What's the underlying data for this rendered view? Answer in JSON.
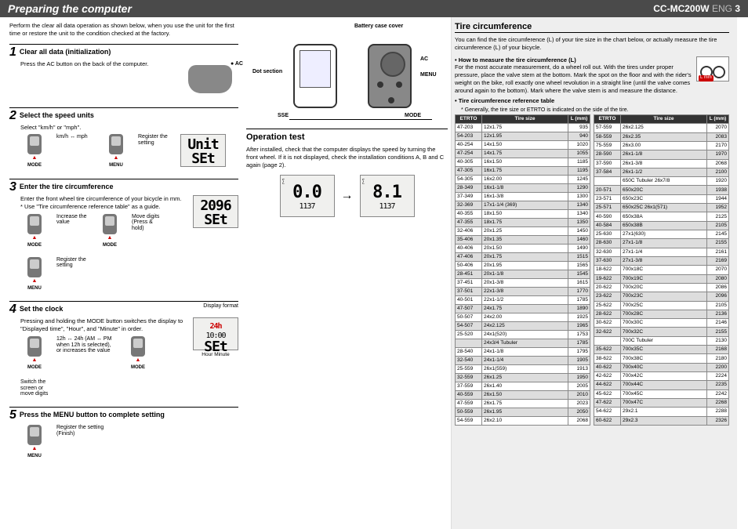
{
  "header": {
    "title": "Preparing the computer",
    "model": "CC-MC200W",
    "lang": "ENG",
    "page": "3"
  },
  "intro": "Perform the clear all data operation as shown below, when you use the unit for the first time or restore the unit to the condition checked at the factory.",
  "steps": [
    {
      "num": "1",
      "title": "Clear all data (initialization)",
      "body": "Press the AC button on the back of the computer.",
      "device_label": "AC"
    },
    {
      "num": "2",
      "title": "Select the speed units",
      "body": "Select \"km/h\" or \"mph\".",
      "btns": [
        {
          "cap": "km/h ↔ mph",
          "lbl": "MODE"
        },
        {
          "cap": "Register the setting",
          "lbl": "MENU"
        }
      ],
      "lcd": {
        "a": "Unit",
        "b": "SEt"
      }
    },
    {
      "num": "3",
      "title": "Enter the tire circumference",
      "body": "Enter the front wheel tire circumference of your bicycle in mm.\n* Use \"Tire circumference reference table\" as a guide.",
      "btns": [
        {
          "cap": "Increase the value",
          "lbl": "MODE"
        },
        {
          "cap": "Move digits (Press & hold)",
          "lbl": "MODE"
        },
        {
          "cap": "Register the setting",
          "lbl": "MENU"
        }
      ],
      "lcd": {
        "a": "2096",
        "b": "SEt"
      }
    },
    {
      "num": "4",
      "title": "Set the clock",
      "body": "Pressing and holding the MODE button switches the display to \"Displayed time\", \"Hour\", and \"Minute\" in order.",
      "btns": [
        {
          "cap": "12h ↔ 24h (AM ↔ PM when 12h is selected), or increases the value",
          "lbl": "MODE"
        },
        {
          "cap": "Switch the screen or move digits",
          "lbl": "MODE"
        }
      ],
      "extra": "Display format",
      "hm": "Hour   Minute",
      "lcd": {
        "a": "24h",
        "b": "SEt",
        "mid": "10:00"
      }
    },
    {
      "num": "5",
      "title": "Press the MENU button to complete setting",
      "btns": [
        {
          "cap": "Register the setting (Finish)",
          "lbl": "MENU"
        }
      ]
    }
  ],
  "mid": {
    "labels": {
      "battery": "Battery case cover",
      "ac": "AC",
      "menu": "MENU",
      "dot": "Dot section",
      "sse": "SSE",
      "mode": "MODE"
    },
    "op_title": "Operation test",
    "op_body": "After installed, check that the computer displays the speed by turning the front wheel. If it is not displayed, check the installation conditions A, B and C again (page 2).",
    "lcd1": {
      "a": "0.0",
      "b": "1137"
    },
    "lcd2": {
      "a": "8.1",
      "b": "1137"
    }
  },
  "tire": {
    "title": "Tire circumference",
    "intro": "You can find the tire circumference (L) of your tire size in the chart below, or actually measure the tire circumference (L) of your bicycle.",
    "measure_h": "How to measure the tire circumference (L)",
    "measure": "For the most accurate measurement, do a wheel roll out. With the tires under proper pressure, place the valve stem at the bottom. Mark the spot on the floor and with the rider's weight on the bike, roll exactly one wheel revolution in a straight line (until the valve comes around again to the bottom). Mark where the valve stem is and measure the distance.",
    "ref_h": "Tire circumference reference table",
    "ref_note": "* Generally, the tire size or ETRTO is indicated on the side of the tire.",
    "cols": [
      "ETRTO",
      "Tire size",
      "L (mm)"
    ],
    "left": [
      [
        "47-203",
        "12x1.75",
        "935"
      ],
      [
        "54-203",
        "12x1.95",
        "940"
      ],
      [
        "40-254",
        "14x1.50",
        "1020"
      ],
      [
        "47-254",
        "14x1.75",
        "1055"
      ],
      [
        "40-305",
        "16x1.50",
        "1185"
      ],
      [
        "47-305",
        "16x1.75",
        "1195"
      ],
      [
        "54-305",
        "16x2.00",
        "1245"
      ],
      [
        "28-349",
        "16x1-1/8",
        "1290"
      ],
      [
        "37-349",
        "16x1-3/8",
        "1300"
      ],
      [
        "32-369",
        "17x1-1/4 (369)",
        "1340"
      ],
      [
        "40-355",
        "18x1.50",
        "1340"
      ],
      [
        "47-355",
        "18x1.75",
        "1350"
      ],
      [
        "32-406",
        "20x1.25",
        "1450"
      ],
      [
        "35-406",
        "20x1.35",
        "1460"
      ],
      [
        "40-406",
        "20x1.50",
        "1490"
      ],
      [
        "47-406",
        "20x1.75",
        "1515"
      ],
      [
        "50-406",
        "20x1.95",
        "1565"
      ],
      [
        "28-451",
        "20x1-1/8",
        "1545"
      ],
      [
        "37-451",
        "20x1-3/8",
        "1615"
      ],
      [
        "37-501",
        "22x1-3/8",
        "1770"
      ],
      [
        "40-501",
        "22x1-1/2",
        "1785"
      ],
      [
        "47-507",
        "24x1.75",
        "1890"
      ],
      [
        "50-507",
        "24x2.00",
        "1925"
      ],
      [
        "54-507",
        "24x2.125",
        "1965"
      ],
      [
        "25-520",
        "24x1(520)",
        "1753"
      ],
      [
        "",
        "24x3/4 Tubuler",
        "1785"
      ],
      [
        "28-540",
        "24x1-1/8",
        "1795"
      ],
      [
        "32-540",
        "24x1-1/4",
        "1905"
      ],
      [
        "25-559",
        "26x1(559)",
        "1913"
      ],
      [
        "32-559",
        "26x1.25",
        "1950"
      ],
      [
        "37-559",
        "26x1.40",
        "2005"
      ],
      [
        "40-559",
        "26x1.50",
        "2010"
      ],
      [
        "47-559",
        "26x1.75",
        "2023"
      ],
      [
        "50-559",
        "26x1.95",
        "2050"
      ],
      [
        "54-559",
        "26x2.10",
        "2068"
      ]
    ],
    "right": [
      [
        "57-559",
        "26x2.125",
        "2070"
      ],
      [
        "58-559",
        "26x2.35",
        "2083"
      ],
      [
        "75-559",
        "26x3.00",
        "2170"
      ],
      [
        "28-590",
        "26x1-1/8",
        "1970"
      ],
      [
        "37-590",
        "26x1-3/8",
        "2068"
      ],
      [
        "37-584",
        "26x1-1/2",
        "2100"
      ],
      [
        "",
        "650C Tubuler 26x7/8",
        "1920"
      ],
      [
        "20-571",
        "650x20C",
        "1938"
      ],
      [
        "23-571",
        "650x23C",
        "1944"
      ],
      [
        "25-571",
        "650x25C 26x1(571)",
        "1952"
      ],
      [
        "40-590",
        "650x38A",
        "2125"
      ],
      [
        "40-584",
        "650x38B",
        "2105"
      ],
      [
        "25-630",
        "27x1(630)",
        "2145"
      ],
      [
        "28-630",
        "27x1-1/8",
        "2155"
      ],
      [
        "32-630",
        "27x1-1/4",
        "2161"
      ],
      [
        "37-630",
        "27x1-3/8",
        "2169"
      ],
      [
        "18-622",
        "700x18C",
        "2070"
      ],
      [
        "19-622",
        "700x19C",
        "2080"
      ],
      [
        "20-622",
        "700x20C",
        "2086"
      ],
      [
        "23-622",
        "700x23C",
        "2096"
      ],
      [
        "25-622",
        "700x25C",
        "2105"
      ],
      [
        "28-622",
        "700x28C",
        "2136"
      ],
      [
        "30-622",
        "700x30C",
        "2146"
      ],
      [
        "32-622",
        "700x32C",
        "2155"
      ],
      [
        "",
        "700C Tubuler",
        "2130"
      ],
      [
        "35-622",
        "700x35C",
        "2168"
      ],
      [
        "38-622",
        "700x38C",
        "2180"
      ],
      [
        "40-622",
        "700x40C",
        "2200"
      ],
      [
        "42-622",
        "700x42C",
        "2224"
      ],
      [
        "44-622",
        "700x44C",
        "2235"
      ],
      [
        "45-622",
        "700x45C",
        "2242"
      ],
      [
        "47-622",
        "700x47C",
        "2268"
      ],
      [
        "54-622",
        "29x2.1",
        "2288"
      ],
      [
        "60-622",
        "29x2.3",
        "2326"
      ]
    ]
  }
}
